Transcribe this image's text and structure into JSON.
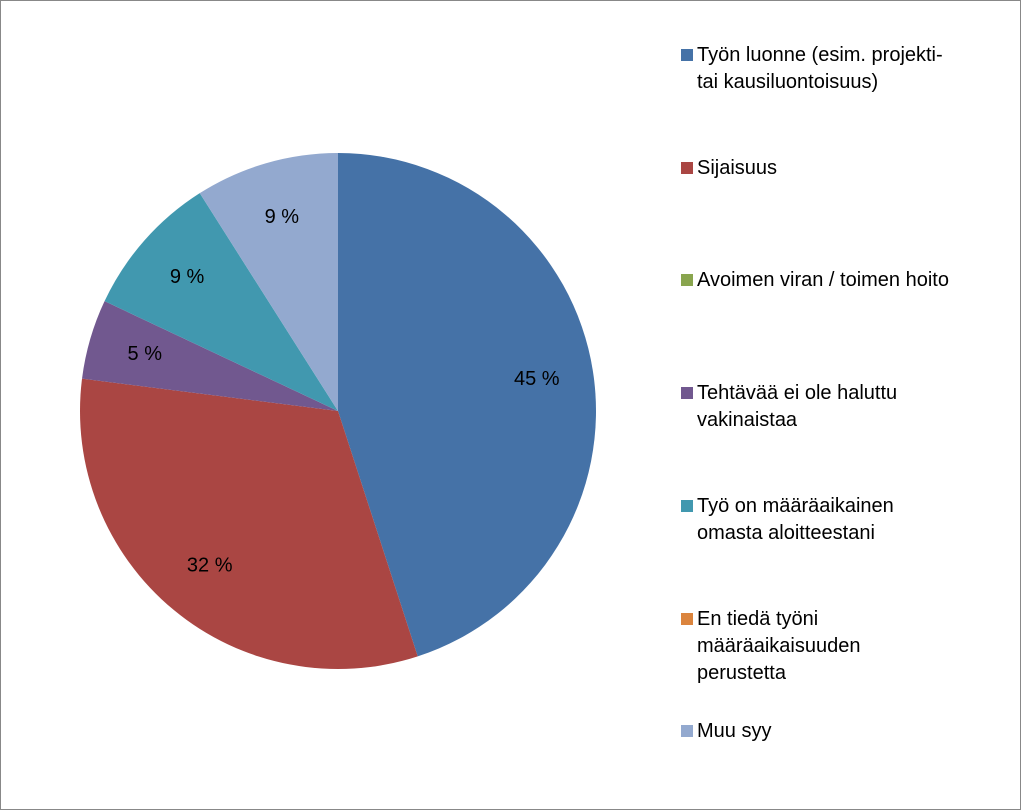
{
  "chart_data": {
    "type": "pie",
    "categories": [
      "Työn luonne (esim. projekti-tai kausiluontoisuus)",
      "Sijaisuus",
      "Avoimen viran / toimen hoito",
      "Tehtävää ei ole haluttu vakinaistaa",
      "Työ on määräaikainen omasta aloitteestani",
      "En tiedä työni määräaikaisuuden perustetta",
      "Muu syy"
    ],
    "values": [
      45,
      32,
      0,
      5,
      9,
      0,
      9
    ],
    "value_labels": [
      "45 %",
      "32 %",
      null,
      "5 %",
      "9 %",
      null,
      "9 %"
    ],
    "colors": [
      "#4572a7",
      "#aa4643",
      "#89a54e",
      "#71588f",
      "#4198af",
      "#db843d",
      "#93a9cf"
    ],
    "legend": "right"
  }
}
